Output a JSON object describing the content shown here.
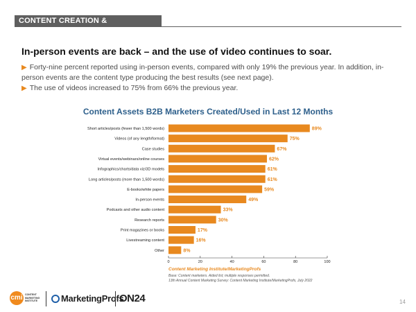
{
  "header": {
    "section": "CONTENT CREATION & DISTRIBUTION"
  },
  "headline": "In-person events are back – and the use of video continues to soar.",
  "bullets": [
    "Forty-nine percent reported using in-person events, compared with only 19% the previous year. In addition, in-person events are the content type producing the best results (see next page).",
    "The use of videos increased to 75% from 66% the previous year."
  ],
  "chart_data": {
    "type": "bar",
    "orientation": "horizontal",
    "title": "Content Assets B2B Marketers Created/Used in Last 12 Months",
    "categories": [
      "Short articles/posts (fewer than 1,500 words)",
      "Videos (of any length/format)",
      "Case studies",
      "Virtual events/webinars/online courses",
      "Infographics/charts/data viz/3D models",
      "Long articles/posts (more than 1,500 words)",
      "E-books/white papers",
      "In-person events",
      "Podcasts and other audio content",
      "Research reports",
      "Print magazines or books",
      "Livestreaming content",
      "Other"
    ],
    "values": [
      89,
      75,
      67,
      62,
      61,
      61,
      59,
      49,
      33,
      30,
      17,
      16,
      8
    ],
    "value_labels": [
      "89%",
      "75%",
      "67%",
      "62%",
      "61%",
      "61%",
      "59%",
      "49%",
      "33%",
      "30%",
      "17%",
      "16%",
      "8%"
    ],
    "xlim": [
      0,
      100
    ],
    "xticks": [
      0,
      20,
      40,
      60,
      80,
      100
    ],
    "xtick_labels": [
      "0",
      "20",
      "40",
      "60",
      "80",
      "100"
    ],
    "bar_color": "#e8891f",
    "grid": false
  },
  "source": "Content Marketing Institute/MarketingProfs",
  "notes": [
    "Base: Content marketers. Aided list; multiple responses permitted.",
    "13th Annual Content Marketing Survey: Content Marketing Institute/MarketingProfs, July 2022"
  ],
  "logos": {
    "cmi_mark": "cmi",
    "cmi_text": [
      "CONTENT",
      "MARKETING",
      "INSTITUTE"
    ],
    "marketingprofs": "MarketingProfs",
    "on24": "ON24"
  },
  "page_number": "14",
  "colors": {
    "accent": "#e8891f",
    "title_blue": "#2d5f8b",
    "section_gray": "#5f5f5f"
  }
}
